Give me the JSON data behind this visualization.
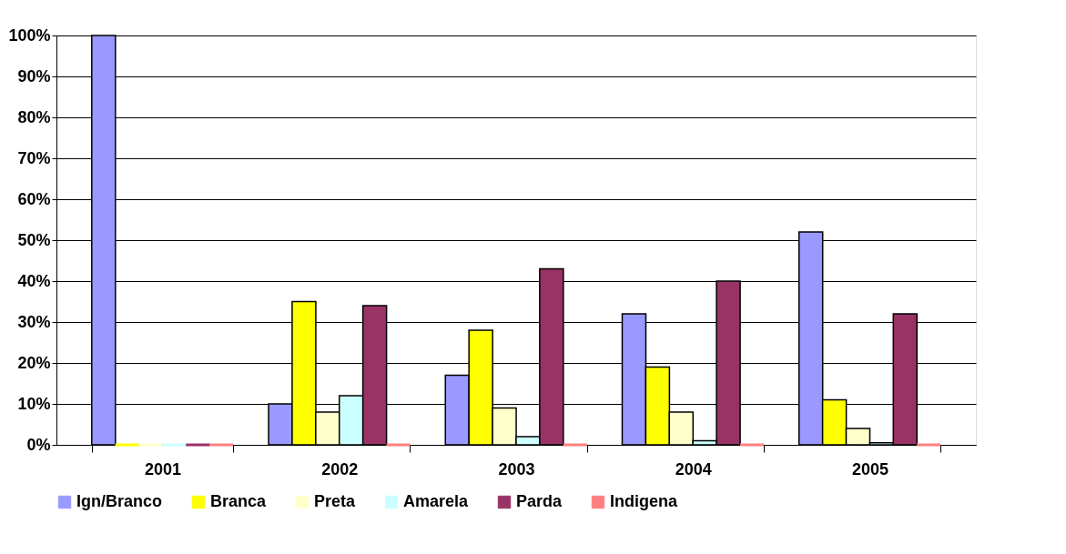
{
  "chart_data": {
    "type": "bar",
    "categories": [
      "2001",
      "2002",
      "2003",
      "2004",
      "2005"
    ],
    "series": [
      {
        "name": "Ign/Branco",
        "color": "#9999ff",
        "values": [
          100,
          10,
          17,
          32,
          52
        ]
      },
      {
        "name": "Branca",
        "color": "#ffff00",
        "values": [
          0,
          35,
          28,
          19,
          11
        ]
      },
      {
        "name": "Preta",
        "color": "#ffffcc",
        "values": [
          0,
          8,
          9,
          8,
          4
        ]
      },
      {
        "name": "Amarela",
        "color": "#ccffff",
        "values": [
          0,
          12,
          2,
          1,
          0.5
        ]
      },
      {
        "name": "Parda",
        "color": "#993366",
        "values": [
          0,
          34,
          43,
          40,
          32
        ]
      },
      {
        "name": "Indigena",
        "color": "#ff8080",
        "values": [
          0,
          0,
          0,
          0,
          0
        ]
      }
    ],
    "ylim": [
      0,
      100
    ],
    "yticks": [
      {
        "value": 0,
        "label": "0%"
      },
      {
        "value": 10,
        "label": "10%"
      },
      {
        "value": 20,
        "label": "20%"
      },
      {
        "value": 30,
        "label": "30%"
      },
      {
        "value": 40,
        "label": "40%"
      },
      {
        "value": 50,
        "label": "50%"
      },
      {
        "value": 60,
        "label": "60%"
      },
      {
        "value": 70,
        "label": "70%"
      },
      {
        "value": 80,
        "label": "80%"
      },
      {
        "value": 90,
        "label": "90%"
      },
      {
        "value": 100,
        "label": "100%"
      }
    ],
    "grid": "y",
    "legend": "bottom"
  }
}
